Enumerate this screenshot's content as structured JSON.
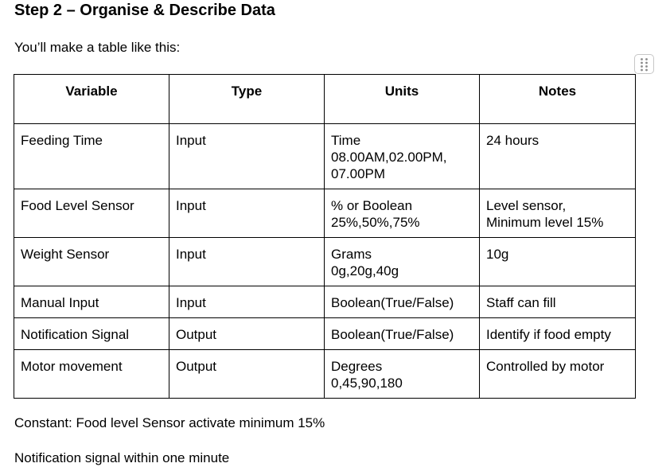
{
  "document": {
    "heading": "Step 2 – Organise & Describe Data",
    "intro": "You’ll make a table like this:",
    "handle_icon": "drag-handle-icon",
    "table": {
      "headers": [
        "Variable",
        "Type",
        "Units",
        "Notes"
      ],
      "rows": [
        {
          "variable": "Feeding Time",
          "type": "Input",
          "units": [
            "Time",
            "08.00AM,02.00PM,",
            "07.00PM"
          ],
          "notes": [
            "24 hours"
          ]
        },
        {
          "variable": "Food Level Sensor",
          "type": "Input",
          "units": [
            "% or Boolean",
            "25%,50%,75%"
          ],
          "notes": [
            "Level sensor,",
            "Minimum level 15%"
          ]
        },
        {
          "variable": "Weight Sensor",
          "type": "Input",
          "units": [
            "Grams",
            "0g,20g,40g"
          ],
          "notes": [
            "10g"
          ]
        },
        {
          "variable": "Manual Input",
          "type": "Input",
          "units": [
            "Boolean(True/False)"
          ],
          "notes": [
            "Staff can fill"
          ]
        },
        {
          "variable": "Notification Signal",
          "type": "Output",
          "units": [
            "Boolean(True/False)"
          ],
          "notes": [
            "Identify if food empty"
          ]
        },
        {
          "variable": "Motor movement",
          "type": "Output",
          "units": [
            "Degrees",
            "0,45,90,180"
          ],
          "notes": [
            "Controlled by motor"
          ]
        }
      ]
    },
    "constant_text": "Constant: Food level Sensor activate minimum 15%",
    "notification_text": "Notification signal within one minute"
  }
}
